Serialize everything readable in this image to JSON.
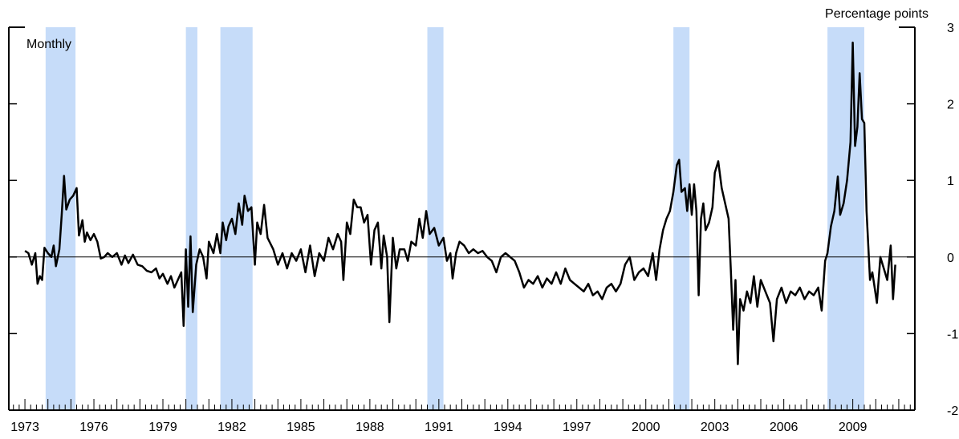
{
  "chart_data": {
    "type": "line",
    "title": "",
    "xlabel": "",
    "ylabel": "Percentage points",
    "annotation": "Monthly",
    "xlim": [
      1972.3,
      2011.7
    ],
    "ylim": [
      -2,
      3
    ],
    "y_ticks": [
      3,
      2,
      1,
      0,
      -1,
      -2
    ],
    "x_tick_labels": [
      1973,
      1976,
      1979,
      1982,
      1985,
      1988,
      1991,
      1994,
      1997,
      2000,
      2003,
      2006,
      2009
    ],
    "zero_line": true,
    "recession_color": "#c6dcf9",
    "line_color": "#000000",
    "recessions": [
      [
        1973.9,
        1975.2
      ],
      [
        1980.0,
        1980.5
      ],
      [
        1981.5,
        1982.9
      ],
      [
        1990.5,
        1991.2
      ],
      [
        2001.2,
        2001.9
      ],
      [
        2007.9,
        2009.5
      ]
    ],
    "series": [
      {
        "points": [
          [
            1973.0,
            0.08
          ],
          [
            1973.15,
            0.05
          ],
          [
            1973.3,
            -0.1
          ],
          [
            1973.45,
            0.05
          ],
          [
            1973.55,
            -0.35
          ],
          [
            1973.65,
            -0.25
          ],
          [
            1973.75,
            -0.3
          ],
          [
            1973.85,
            0.12
          ],
          [
            1974.0,
            0.05
          ],
          [
            1974.15,
            0.0
          ],
          [
            1974.25,
            0.15
          ],
          [
            1974.35,
            -0.12
          ],
          [
            1974.5,
            0.1
          ],
          [
            1974.6,
            0.55
          ],
          [
            1974.7,
            1.06
          ],
          [
            1974.8,
            0.62
          ],
          [
            1974.95,
            0.75
          ],
          [
            1975.1,
            0.8
          ],
          [
            1975.25,
            0.9
          ],
          [
            1975.35,
            0.28
          ],
          [
            1975.5,
            0.48
          ],
          [
            1975.6,
            0.2
          ],
          [
            1975.7,
            0.32
          ],
          [
            1975.85,
            0.22
          ],
          [
            1976.0,
            0.3
          ],
          [
            1976.15,
            0.2
          ],
          [
            1976.3,
            -0.02
          ],
          [
            1976.45,
            0.0
          ],
          [
            1976.6,
            0.05
          ],
          [
            1976.8,
            0.0
          ],
          [
            1977.0,
            0.05
          ],
          [
            1977.2,
            -0.1
          ],
          [
            1977.35,
            0.02
          ],
          [
            1977.5,
            -0.08
          ],
          [
            1977.7,
            0.03
          ],
          [
            1977.9,
            -0.1
          ],
          [
            1978.1,
            -0.12
          ],
          [
            1978.3,
            -0.18
          ],
          [
            1978.5,
            -0.2
          ],
          [
            1978.7,
            -0.15
          ],
          [
            1978.85,
            -0.28
          ],
          [
            1979.0,
            -0.22
          ],
          [
            1979.2,
            -0.35
          ],
          [
            1979.35,
            -0.25
          ],
          [
            1979.5,
            -0.4
          ],
          [
            1979.65,
            -0.3
          ],
          [
            1979.8,
            -0.2
          ],
          [
            1979.9,
            -0.9
          ],
          [
            1980.0,
            0.1
          ],
          [
            1980.1,
            -0.65
          ],
          [
            1980.2,
            0.27
          ],
          [
            1980.3,
            -0.72
          ],
          [
            1980.45,
            -0.1
          ],
          [
            1980.6,
            0.1
          ],
          [
            1980.75,
            0.0
          ],
          [
            1980.9,
            -0.28
          ],
          [
            1981.0,
            0.2
          ],
          [
            1981.2,
            0.05
          ],
          [
            1981.35,
            0.3
          ],
          [
            1981.5,
            0.05
          ],
          [
            1981.6,
            0.45
          ],
          [
            1981.75,
            0.22
          ],
          [
            1981.85,
            0.4
          ],
          [
            1982.0,
            0.5
          ],
          [
            1982.15,
            0.3
          ],
          [
            1982.3,
            0.7
          ],
          [
            1982.45,
            0.42
          ],
          [
            1982.55,
            0.8
          ],
          [
            1982.7,
            0.6
          ],
          [
            1982.85,
            0.65
          ],
          [
            1983.0,
            -0.1
          ],
          [
            1983.1,
            0.45
          ],
          [
            1983.25,
            0.3
          ],
          [
            1983.4,
            0.68
          ],
          [
            1983.55,
            0.25
          ],
          [
            1983.8,
            0.1
          ],
          [
            1984.0,
            -0.1
          ],
          [
            1984.2,
            0.05
          ],
          [
            1984.4,
            -0.15
          ],
          [
            1984.6,
            0.05
          ],
          [
            1984.8,
            -0.05
          ],
          [
            1985.0,
            0.1
          ],
          [
            1985.2,
            -0.2
          ],
          [
            1985.4,
            0.15
          ],
          [
            1985.6,
            -0.25
          ],
          [
            1985.8,
            0.05
          ],
          [
            1986.0,
            -0.05
          ],
          [
            1986.2,
            0.25
          ],
          [
            1986.4,
            0.1
          ],
          [
            1986.6,
            0.3
          ],
          [
            1986.75,
            0.2
          ],
          [
            1986.85,
            -0.3
          ],
          [
            1987.0,
            0.45
          ],
          [
            1987.15,
            0.3
          ],
          [
            1987.3,
            0.75
          ],
          [
            1987.45,
            0.65
          ],
          [
            1987.6,
            0.65
          ],
          [
            1987.75,
            0.45
          ],
          [
            1987.9,
            0.55
          ],
          [
            1988.05,
            -0.1
          ],
          [
            1988.2,
            0.35
          ],
          [
            1988.35,
            0.45
          ],
          [
            1988.5,
            -0.15
          ],
          [
            1988.6,
            0.28
          ],
          [
            1988.75,
            0.0
          ],
          [
            1988.85,
            -0.85
          ],
          [
            1989.0,
            0.25
          ],
          [
            1989.15,
            -0.15
          ],
          [
            1989.3,
            0.1
          ],
          [
            1989.5,
            0.1
          ],
          [
            1989.65,
            -0.05
          ],
          [
            1989.8,
            0.2
          ],
          [
            1990.0,
            0.15
          ],
          [
            1990.15,
            0.5
          ],
          [
            1990.3,
            0.25
          ],
          [
            1990.45,
            0.6
          ],
          [
            1990.6,
            0.3
          ],
          [
            1990.8,
            0.38
          ],
          [
            1991.0,
            0.15
          ],
          [
            1991.2,
            0.25
          ],
          [
            1991.35,
            -0.05
          ],
          [
            1991.5,
            0.05
          ],
          [
            1991.6,
            -0.28
          ],
          [
            1991.75,
            0.05
          ],
          [
            1991.9,
            0.2
          ],
          [
            1992.1,
            0.15
          ],
          [
            1992.3,
            0.05
          ],
          [
            1992.5,
            0.1
          ],
          [
            1992.7,
            0.05
          ],
          [
            1992.9,
            0.08
          ],
          [
            1993.1,
            0.0
          ],
          [
            1993.3,
            -0.05
          ],
          [
            1993.5,
            -0.2
          ],
          [
            1993.7,
            0.0
          ],
          [
            1993.9,
            0.05
          ],
          [
            1994.1,
            0.0
          ],
          [
            1994.3,
            -0.05
          ],
          [
            1994.5,
            -0.2
          ],
          [
            1994.7,
            -0.4
          ],
          [
            1994.9,
            -0.3
          ],
          [
            1995.1,
            -0.35
          ],
          [
            1995.3,
            -0.25
          ],
          [
            1995.5,
            -0.4
          ],
          [
            1995.7,
            -0.28
          ],
          [
            1995.9,
            -0.35
          ],
          [
            1996.1,
            -0.2
          ],
          [
            1996.3,
            -0.35
          ],
          [
            1996.5,
            -0.15
          ],
          [
            1996.7,
            -0.3
          ],
          [
            1996.9,
            -0.35
          ],
          [
            1997.1,
            -0.4
          ],
          [
            1997.3,
            -0.45
          ],
          [
            1997.5,
            -0.35
          ],
          [
            1997.7,
            -0.5
          ],
          [
            1997.9,
            -0.45
          ],
          [
            1998.1,
            -0.55
          ],
          [
            1998.3,
            -0.4
          ],
          [
            1998.5,
            -0.35
          ],
          [
            1998.7,
            -0.45
          ],
          [
            1998.9,
            -0.35
          ],
          [
            1999.1,
            -0.1
          ],
          [
            1999.3,
            0.0
          ],
          [
            1999.5,
            -0.3
          ],
          [
            1999.7,
            -0.2
          ],
          [
            1999.9,
            -0.15
          ],
          [
            2000.1,
            -0.25
          ],
          [
            2000.3,
            0.05
          ],
          [
            2000.45,
            -0.3
          ],
          [
            2000.6,
            0.1
          ],
          [
            2000.75,
            0.35
          ],
          [
            2000.9,
            0.5
          ],
          [
            2001.05,
            0.6
          ],
          [
            2001.2,
            0.85
          ],
          [
            2001.35,
            1.2
          ],
          [
            2001.45,
            1.27
          ],
          [
            2001.55,
            0.85
          ],
          [
            2001.7,
            0.9
          ],
          [
            2001.8,
            0.6
          ],
          [
            2001.9,
            0.95
          ],
          [
            2002.0,
            0.55
          ],
          [
            2002.1,
            0.95
          ],
          [
            2002.2,
            0.6
          ],
          [
            2002.3,
            -0.5
          ],
          [
            2002.4,
            0.5
          ],
          [
            2002.5,
            0.7
          ],
          [
            2002.6,
            0.35
          ],
          [
            2002.75,
            0.45
          ],
          [
            2002.9,
            0.65
          ],
          [
            2003.0,
            1.1
          ],
          [
            2003.15,
            1.25
          ],
          [
            2003.3,
            0.9
          ],
          [
            2003.45,
            0.7
          ],
          [
            2003.6,
            0.5
          ],
          [
            2003.7,
            -0.2
          ],
          [
            2003.8,
            -0.95
          ],
          [
            2003.9,
            -0.3
          ],
          [
            2004.0,
            -1.4
          ],
          [
            2004.1,
            -0.55
          ],
          [
            2004.25,
            -0.7
          ],
          [
            2004.4,
            -0.45
          ],
          [
            2004.55,
            -0.6
          ],
          [
            2004.7,
            -0.25
          ],
          [
            2004.85,
            -0.65
          ],
          [
            2005.0,
            -0.3
          ],
          [
            2005.2,
            -0.45
          ],
          [
            2005.4,
            -0.6
          ],
          [
            2005.55,
            -1.1
          ],
          [
            2005.7,
            -0.55
          ],
          [
            2005.9,
            -0.4
          ],
          [
            2006.1,
            -0.6
          ],
          [
            2006.3,
            -0.45
          ],
          [
            2006.5,
            -0.5
          ],
          [
            2006.7,
            -0.4
          ],
          [
            2006.9,
            -0.55
          ],
          [
            2007.1,
            -0.45
          ],
          [
            2007.3,
            -0.5
          ],
          [
            2007.5,
            -0.4
          ],
          [
            2007.65,
            -0.7
          ],
          [
            2007.8,
            -0.05
          ],
          [
            2007.9,
            0.05
          ],
          [
            2008.05,
            0.4
          ],
          [
            2008.2,
            0.6
          ],
          [
            2008.35,
            1.05
          ],
          [
            2008.45,
            0.55
          ],
          [
            2008.6,
            0.7
          ],
          [
            2008.75,
            1.0
          ],
          [
            2008.9,
            1.5
          ],
          [
            2009.0,
            2.8
          ],
          [
            2009.1,
            1.45
          ],
          [
            2009.2,
            1.7
          ],
          [
            2009.3,
            2.4
          ],
          [
            2009.4,
            1.8
          ],
          [
            2009.5,
            1.75
          ],
          [
            2009.6,
            0.6
          ],
          [
            2009.75,
            -0.3
          ],
          [
            2009.85,
            -0.2
          ],
          [
            2009.95,
            -0.4
          ],
          [
            2010.05,
            -0.6
          ],
          [
            2010.2,
            0.0
          ],
          [
            2010.35,
            -0.15
          ],
          [
            2010.5,
            -0.3
          ],
          [
            2010.65,
            0.15
          ],
          [
            2010.75,
            -0.55
          ],
          [
            2010.85,
            -0.1
          ]
        ]
      }
    ]
  }
}
